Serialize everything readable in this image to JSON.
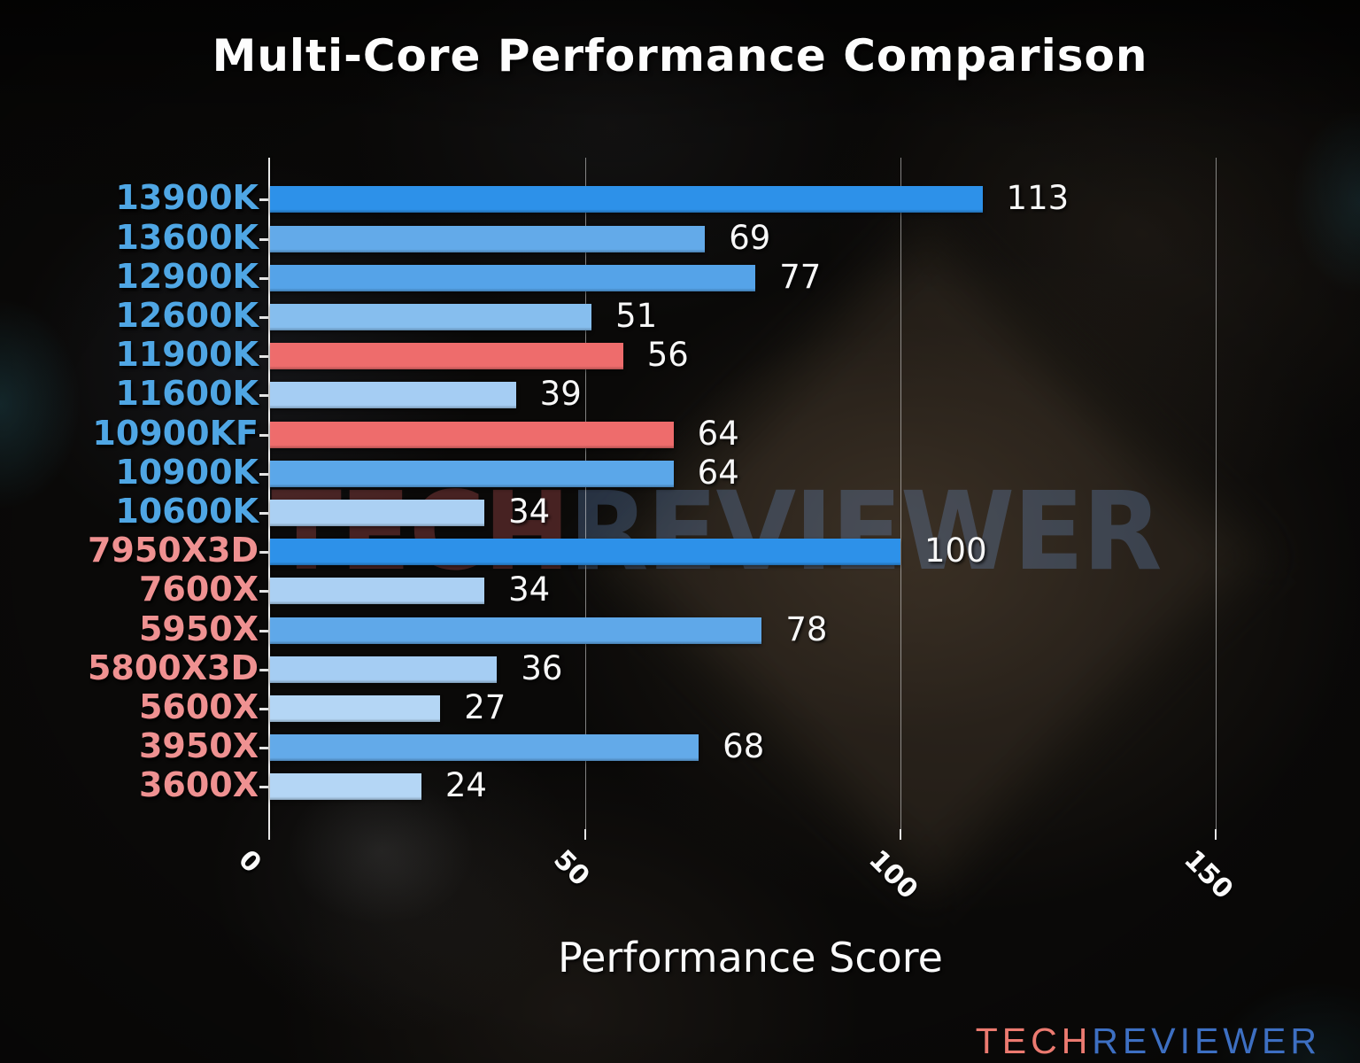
{
  "title": "Multi-Core Performance Comparison",
  "watermark": {
    "tech": "TECH",
    "reviewer": "REVIEWER"
  },
  "logo": {
    "tech": "TECH",
    "reviewer": "REVIEWER"
  },
  "colors": {
    "intel_label": "#4fa6e4",
    "amd_label": "#ef9191",
    "value_label": "#f7f7f7",
    "highlight_red_bar": "#ee6c6c",
    "strong_blue_bar": "#2d91e9",
    "axis": "#e9e9e9"
  },
  "chart_data": {
    "type": "bar",
    "orientation": "horizontal",
    "title": "Multi-Core Performance Comparison",
    "xlabel": "Performance Score",
    "xlim": [
      0,
      167
    ],
    "xticks": [
      0,
      50,
      100,
      150
    ],
    "grid": "vertical gridlines at 50, 100, 150",
    "legend": "none",
    "categories": [
      "13900K",
      "13600K",
      "12900K",
      "12600K",
      "11900K",
      "11600K",
      "10900KF",
      "10900K",
      "10600K",
      "7950X3D",
      "7600X",
      "5950X",
      "5800X3D",
      "5600X",
      "3950X",
      "3600X"
    ],
    "values": [
      113,
      69,
      77,
      51,
      56,
      39,
      64,
      64,
      34,
      100,
      34,
      78,
      36,
      27,
      68,
      24
    ],
    "bars": [
      {
        "label": "13900K",
        "value": 113,
        "bar_color": "#2d91e9",
        "label_color": "#4fa6e4"
      },
      {
        "label": "13600K",
        "value": 69,
        "bar_color": "#63aae9",
        "label_color": "#4fa6e4"
      },
      {
        "label": "12900K",
        "value": 77,
        "bar_color": "#55a3e8",
        "label_color": "#4fa6e4"
      },
      {
        "label": "12600K",
        "value": 51,
        "bar_color": "#86beee",
        "label_color": "#4fa6e4"
      },
      {
        "label": "11900K",
        "value": 56,
        "bar_color": "#ee6c6c",
        "label_color": "#4fa6e4"
      },
      {
        "label": "11600K",
        "value": 39,
        "bar_color": "#a5cdf3",
        "label_color": "#4fa6e4"
      },
      {
        "label": "10900KF",
        "value": 64,
        "bar_color": "#ee6c6c",
        "label_color": "#4fa6e4"
      },
      {
        "label": "10900K",
        "value": 64,
        "bar_color": "#5ba7e9",
        "label_color": "#4fa6e4"
      },
      {
        "label": "10600K",
        "value": 34,
        "bar_color": "#abd0f3",
        "label_color": "#4fa6e4"
      },
      {
        "label": "7950X3D",
        "value": 100,
        "bar_color": "#2d91e9",
        "label_color": "#ef9191"
      },
      {
        "label": "7600X",
        "value": 34,
        "bar_color": "#abd0f3",
        "label_color": "#ef9191"
      },
      {
        "label": "5950X",
        "value": 78,
        "bar_color": "#5fa8e9",
        "label_color": "#ef9191"
      },
      {
        "label": "5800X3D",
        "value": 36,
        "bar_color": "#a5cdf3",
        "label_color": "#ef9191"
      },
      {
        "label": "5600X",
        "value": 27,
        "bar_color": "#b4d6f5",
        "label_color": "#ef9191"
      },
      {
        "label": "3950X",
        "value": 68,
        "bar_color": "#63aae9",
        "label_color": "#ef9191"
      },
      {
        "label": "3600X",
        "value": 24,
        "bar_color": "#b4d6f5",
        "label_color": "#ef9191"
      }
    ]
  }
}
